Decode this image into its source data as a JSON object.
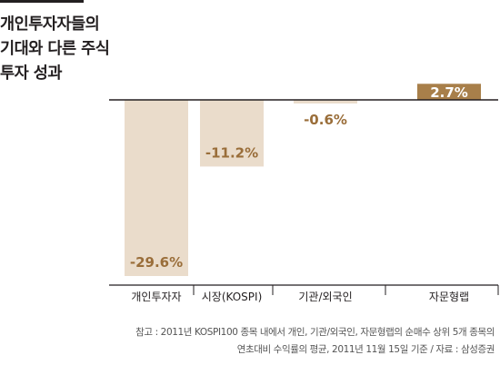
{
  "title_lines": [
    "개인투자자들의",
    "기대와 다른 주식",
    "투자 성과"
  ],
  "note_lines": [
    "참고 : 2011년 KOSPI100 종목 내에서 개인, 기관/외국인, 자문형랩의 순매수 상위 5개 종목의",
    "연초대비 수익률의 평균, 2011년 11월 15일 기준 / 자료 : 삼성증권"
  ],
  "colors": {
    "negative_bar": "#eadccb",
    "positive_bar": "#a87f4a",
    "negative_label": "#9a6e3a",
    "positive_label": "#ffffff",
    "axis": "#231f20"
  },
  "chart_data": {
    "type": "bar",
    "categories": [
      "개인투자자",
      "시장(KOSPI)",
      "기관/외국인",
      "자문형랩"
    ],
    "values": [
      -29.6,
      -11.2,
      -0.6,
      2.7
    ],
    "value_labels": [
      "-29.6%",
      "-11.2%",
      "-0.6%",
      "2.7%"
    ],
    "title": "개인투자자들의 기대와 다른 주식 투자 성과",
    "xlabel": "",
    "ylabel": "",
    "ylim": [
      -29.6,
      2.7
    ],
    "grid": false,
    "legend": "none"
  }
}
